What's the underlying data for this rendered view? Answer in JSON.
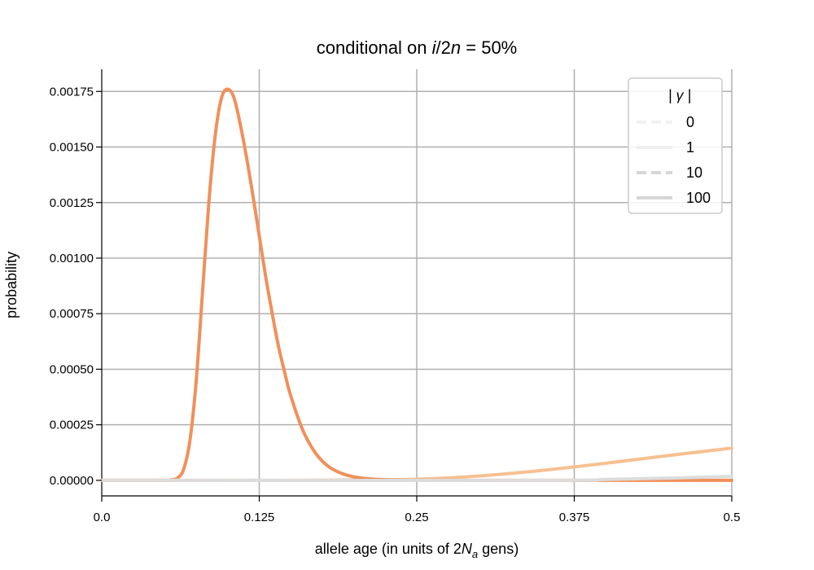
{
  "chart_data": {
    "type": "line",
    "title": "conditional on i/2n = 50%",
    "xlabel": "allele age (in units of 2Na gens)",
    "ylabel": "probability",
    "xlim": [
      0,
      0.5
    ],
    "ylim": [
      -7e-05,
      0.00185
    ],
    "x_ticks": [
      0,
      0.125,
      0.25,
      0.375,
      0.5
    ],
    "x_tick_labels": [
      "0.0",
      "0.125",
      "0.25",
      "0.375",
      "0.5"
    ],
    "y_ticks": [
      0,
      0.00025,
      0.0005,
      0.00075,
      0.001,
      0.00125,
      0.0015,
      0.00175
    ],
    "y_tick_labels": [
      "0.00000",
      "0.00025",
      "0.00050",
      "0.00075",
      "0.00100",
      "0.00125",
      "0.00150",
      "0.00175"
    ],
    "grid": true,
    "legend": {
      "title": "| γ |",
      "placement": "top-right",
      "entries": [
        {
          "label": "0",
          "style": "dashed",
          "color": "#f2f2f2"
        },
        {
          "label": "1",
          "style": "solid",
          "color": "#f0f0f0"
        },
        {
          "label": "10",
          "style": "dashed",
          "color": "#d6d6d6"
        },
        {
          "label": "100",
          "style": "solid",
          "color": "#d6d6d6"
        }
      ]
    },
    "series": [
      {
        "color": "#f7c090",
        "style": "solid",
        "x": [
          0,
          0.05,
          0.1,
          0.15,
          0.2,
          0.25,
          0.3,
          0.35,
          0.4,
          0.45,
          0.5
        ],
        "y": [
          0,
          0,
          0,
          0,
          2e-06,
          5e-06,
          2e-05,
          4.5e-05,
          7.7e-05,
          0.000112,
          0.000145
        ]
      },
      {
        "color": "#f0905a",
        "style": "solid",
        "x": [
          0,
          0.05,
          0.055,
          0.06,
          0.065,
          0.07,
          0.075,
          0.08,
          0.085,
          0.09,
          0.095,
          0.1,
          0.105,
          0.11,
          0.115,
          0.12,
          0.125,
          0.13,
          0.135,
          0.14,
          0.145,
          0.15,
          0.16,
          0.17,
          0.18,
          0.19,
          0.2,
          0.21,
          0.22,
          0.23,
          0.24,
          0.25,
          0.3,
          0.4,
          0.5
        ],
        "y": [
          0,
          0,
          2e-06,
          1e-05,
          5e-05,
          0.00018,
          0.00045,
          0.00085,
          0.00125,
          0.00155,
          0.00172,
          0.00176,
          0.00172,
          0.0016,
          0.00145,
          0.00128,
          0.0011,
          0.00092,
          0.00076,
          0.00061,
          0.00049,
          0.00038,
          0.00022,
          0.00012,
          6.2e-05,
          3.2e-05,
          1.6e-05,
          8e-06,
          4e-06,
          2e-06,
          1e-06,
          0,
          0,
          0,
          0
        ]
      },
      {
        "color": "#dcdcdc",
        "style": "solid",
        "x": [
          0,
          0.35,
          0.4,
          0.45,
          0.5
        ],
        "y": [
          0,
          0,
          4e-06,
          1e-05,
          1.8e-05
        ]
      }
    ]
  }
}
